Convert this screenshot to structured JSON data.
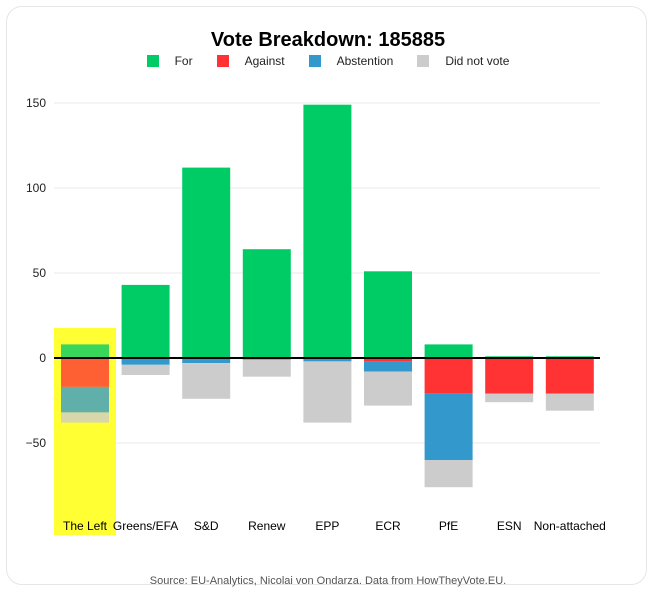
{
  "chart_data": {
    "type": "bar",
    "stacked": true,
    "diverging": true,
    "title": "Vote Breakdown: 185885",
    "xlabel": "",
    "ylabel": "",
    "ylim": [
      -90,
      155
    ],
    "yticks": [
      150,
      100,
      50,
      0,
      -50
    ],
    "grid": true,
    "legend_position": "top-center",
    "highlighted_category": "The Left",
    "highlight_color": "#ffff33",
    "categories": [
      "The Left",
      "Greens/EFA",
      "S&D",
      "Renew",
      "EPP",
      "ECR",
      "PfE",
      "ESN",
      "Non-attached"
    ],
    "series": [
      {
        "name": "For",
        "color": "#00cc66",
        "direction": "up",
        "values": [
          8,
          43,
          112,
          64,
          149,
          51,
          8,
          1,
          1
        ]
      },
      {
        "name": "Against",
        "color": "#ff3333",
        "direction": "down",
        "values": [
          17,
          0,
          0,
          0,
          0,
          2,
          21,
          21,
          21
        ]
      },
      {
        "name": "Abstention",
        "color": "#3399cc",
        "direction": "down",
        "values": [
          15,
          4,
          3,
          1,
          2,
          6,
          39,
          0,
          0
        ]
      },
      {
        "name": "Did not vote",
        "color": "#cccccc",
        "direction": "down",
        "values": [
          6,
          6,
          21,
          10,
          36,
          20,
          16,
          5,
          10
        ]
      }
    ]
  },
  "source": "Source: EU-Analytics, Nicolai von Ondarza. Data from HowTheyVote.EU."
}
